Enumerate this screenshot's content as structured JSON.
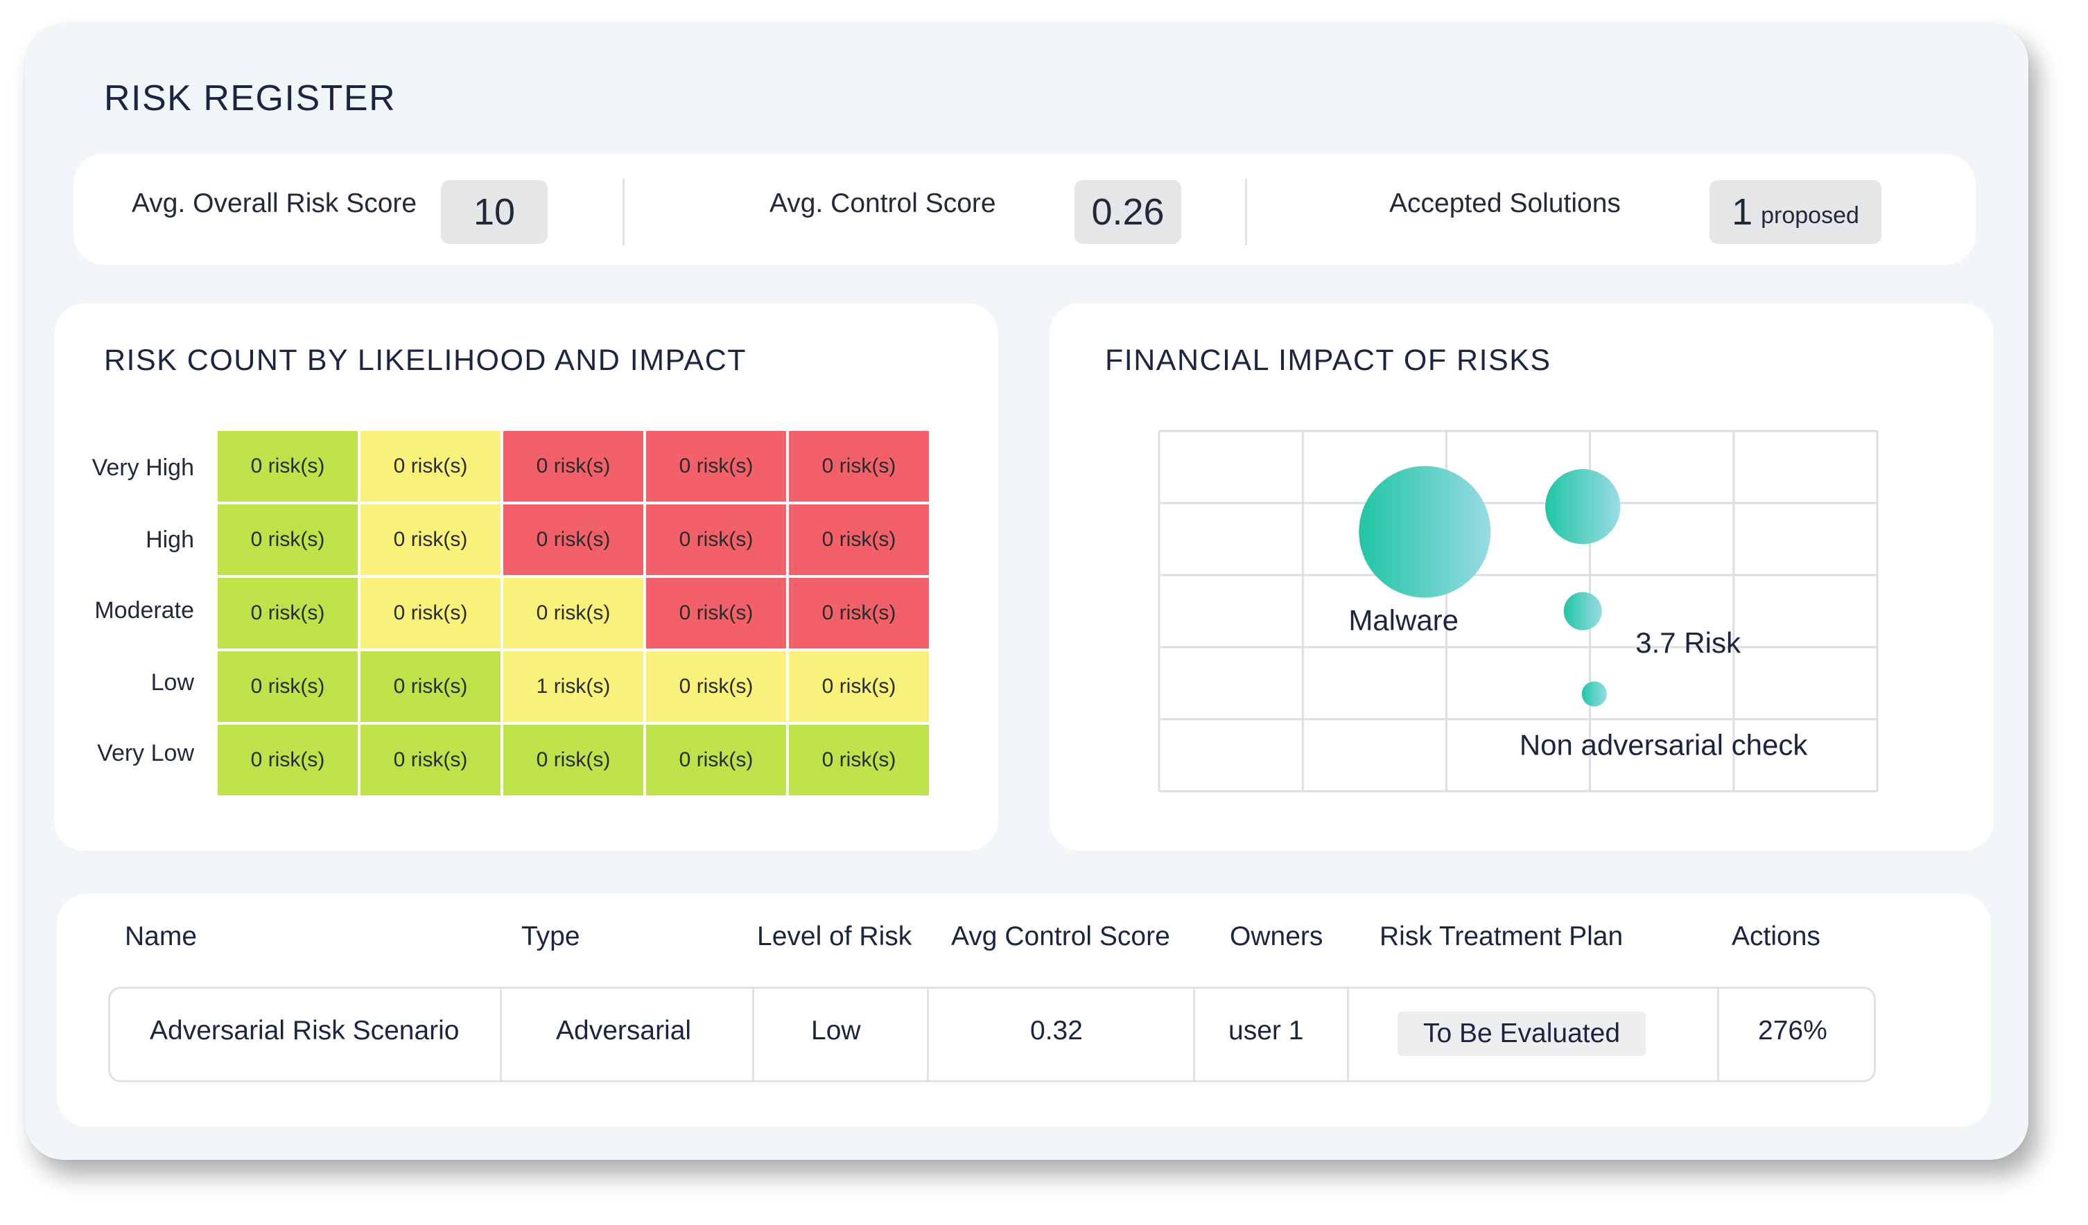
{
  "page": {
    "title": "RISK REGISTER"
  },
  "stats": [
    {
      "label": "Avg. Overall Risk Score",
      "value": "10",
      "suffix": ""
    },
    {
      "label": "Avg. Control Score",
      "value": "0.26",
      "suffix": ""
    },
    {
      "label": "Accepted Solutions",
      "value": "1",
      "suffix": "proposed"
    }
  ],
  "heatmap": {
    "title": "RISK COUNT BY LIKELIHOOD AND IMPACT",
    "row_labels": [
      "Very High",
      "High",
      "Moderate",
      "Low",
      "Very Low"
    ],
    "cells": [
      [
        {
          "text": "0 risk(s)",
          "color": "#bde24a"
        },
        {
          "text": "0 risk(s)",
          "color": "#f9f27a"
        },
        {
          "text": "0 risk(s)",
          "color": "#f2606a"
        },
        {
          "text": "0 risk(s)",
          "color": "#f2606a"
        },
        {
          "text": "0 risk(s)",
          "color": "#f2606a"
        }
      ],
      [
        {
          "text": "0 risk(s)",
          "color": "#bde24a"
        },
        {
          "text": "0 risk(s)",
          "color": "#f9f27a"
        },
        {
          "text": "0 risk(s)",
          "color": "#f2606a"
        },
        {
          "text": "0 risk(s)",
          "color": "#f2606a"
        },
        {
          "text": "0 risk(s)",
          "color": "#f2606a"
        }
      ],
      [
        {
          "text": "0 risk(s)",
          "color": "#bde24a"
        },
        {
          "text": "0 risk(s)",
          "color": "#f9f27a"
        },
        {
          "text": "0 risk(s)",
          "color": "#f9f27a"
        },
        {
          "text": "0 risk(s)",
          "color": "#f2606a"
        },
        {
          "text": "0 risk(s)",
          "color": "#f2606a"
        }
      ],
      [
        {
          "text": "0 risk(s)",
          "color": "#bde24a"
        },
        {
          "text": "0 risk(s)",
          "color": "#bde24a"
        },
        {
          "text": "1 risk(s)",
          "color": "#f9f27a"
        },
        {
          "text": "0 risk(s)",
          "color": "#f9f27a"
        },
        {
          "text": "0 risk(s)",
          "color": "#f9f27a"
        }
      ],
      [
        {
          "text": "0 risk(s)",
          "color": "#bde24a"
        },
        {
          "text": "0 risk(s)",
          "color": "#bde24a"
        },
        {
          "text": "0 risk(s)",
          "color": "#bde24a"
        },
        {
          "text": "0 risk(s)",
          "color": "#bde24a"
        },
        {
          "text": "0 risk(s)",
          "color": "#bde24a"
        }
      ]
    ]
  },
  "financial_chart": {
    "title": "FINANCIAL IMPACT OF RISKS",
    "grid": true,
    "bubble_gradient": [
      "#20c6a4",
      "#9adbe4"
    ]
  },
  "chart_data": {
    "type": "scatter",
    "title": "FINANCIAL IMPACT OF RISKS",
    "xlabel": "",
    "ylabel": "",
    "xlim": [
      0,
      5
    ],
    "ylim": [
      0,
      5
    ],
    "grid": true,
    "points": [
      {
        "label": "Malware",
        "x": 1.85,
        "y": 3.6,
        "size": 1.0
      },
      {
        "label": "",
        "x": 2.95,
        "y": 3.95,
        "size": 0.57
      },
      {
        "label": "3.7 Risk",
        "x": 2.95,
        "y": 2.5,
        "size": 0.29
      },
      {
        "label": "Non adversarial check",
        "x": 3.03,
        "y": 1.35,
        "size": 0.19
      }
    ]
  },
  "table": {
    "columns": [
      "Name",
      "Type",
      "Level of Risk",
      "Avg Control Score",
      "Owners",
      "Risk Treatment Plan",
      "Actions"
    ],
    "rows": [
      [
        "Adversarial Risk Scenario",
        "Adversarial",
        "Low",
        "0.32",
        "user 1",
        "To Be Evaluated",
        "276%"
      ]
    ]
  }
}
